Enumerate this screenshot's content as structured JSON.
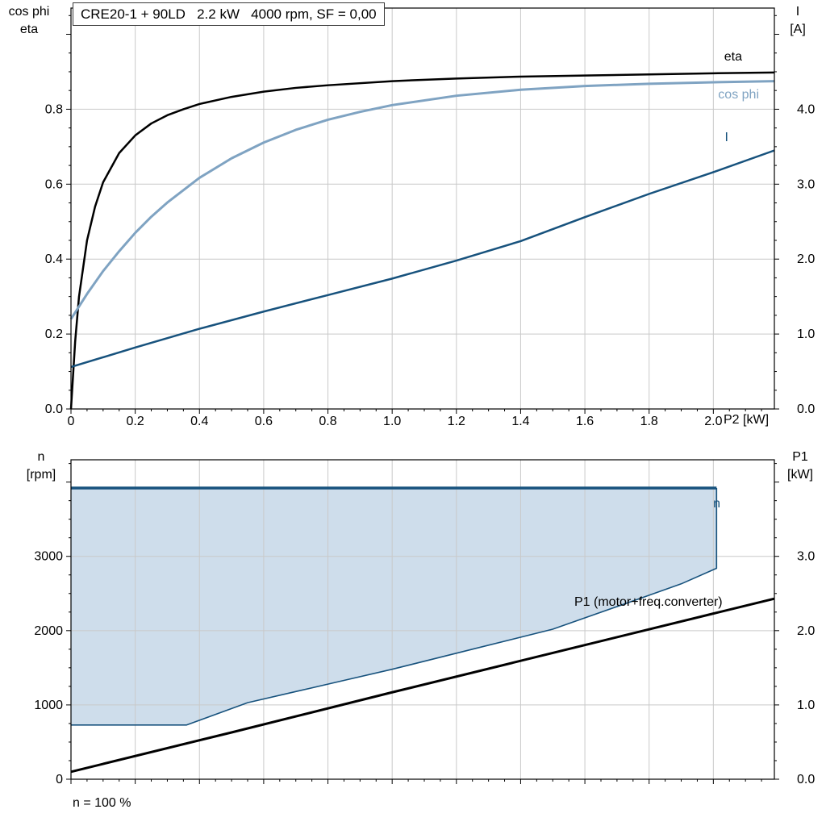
{
  "title_box": {
    "text": "CRE20-1 + 90LD   2.2 kW   4000 rpm, SF = 0,00"
  },
  "top_chart": {
    "left_axis_title": [
      "cos phi",
      "eta"
    ],
    "right_axis_title": [
      "I",
      "[A]"
    ],
    "x_axis_title": "P2 [kW]",
    "curve_labels": {
      "eta": "eta",
      "cos_phi": "cos phi",
      "current": "I"
    }
  },
  "bottom_chart": {
    "left_axis_title": [
      "n",
      "[rpm]"
    ],
    "right_axis_title": [
      "P1",
      "[kW]"
    ],
    "curve_labels": {
      "n": "n",
      "p1": "P1 (motor+freq.converter)"
    },
    "footnote": "n = 100 %"
  },
  "colors": {
    "dark_blue": "#17527D",
    "light_blue": "#7FA3C2",
    "area_fill": "#CEDDEB",
    "grid": "#C9C9C9",
    "black": "#000000"
  },
  "chart_data": [
    {
      "name": "top-performance-chart",
      "type": "line",
      "title": "CRE20-1 + 90LD  2.2 kW  4000 rpm, SF = 0,00",
      "xlabel": "P2 [kW]",
      "ylabel_left": "cos phi / eta",
      "ylabel_right": "I [A]",
      "xlim": [
        0,
        2.19
      ],
      "ylim_left": [
        0,
        1.07
      ],
      "ylim_right": [
        0,
        5.35
      ],
      "x_tick_values": [
        0,
        0.2,
        0.4,
        0.6,
        0.8,
        1.0,
        1.2,
        1.4,
        1.6,
        1.8,
        2.0
      ],
      "x_tick_labels": [
        "0",
        "0.2",
        "0.4",
        "0.6",
        "0.8",
        "1.0",
        "1.2",
        "1.4",
        "1.6",
        "1.8",
        "2.0"
      ],
      "left_tick_values": [
        0,
        0.2,
        0.4,
        0.6,
        0.8
      ],
      "left_tick_labels": [
        "0.0",
        "0.2",
        "0.4",
        "0.6",
        "0.8"
      ],
      "right_tick_values": [
        0,
        1,
        2,
        3,
        4
      ],
      "right_tick_labels": [
        "0.0",
        "1.0",
        "2.0",
        "3.0",
        "4.0"
      ],
      "x_minor_step": 0.05,
      "left_minor_step": 0.05,
      "right_minor_step": 0.25,
      "grid": true,
      "legend_position": "inline-right",
      "series": [
        {
          "name": "eta",
          "axis": "left",
          "color": "#000000",
          "width": 2.5,
          "points": [
            [
              0,
              0
            ],
            [
              0.013,
              0.18
            ],
            [
              0.025,
              0.3
            ],
            [
              0.05,
              0.45
            ],
            [
              0.075,
              0.54
            ],
            [
              0.1,
              0.605
            ],
            [
              0.15,
              0.683
            ],
            [
              0.2,
              0.73
            ],
            [
              0.25,
              0.762
            ],
            [
              0.3,
              0.784
            ],
            [
              0.35,
              0.8
            ],
            [
              0.4,
              0.814
            ],
            [
              0.5,
              0.833
            ],
            [
              0.6,
              0.847
            ],
            [
              0.7,
              0.857
            ],
            [
              0.8,
              0.864
            ],
            [
              1.0,
              0.875
            ],
            [
              1.2,
              0.882
            ],
            [
              1.4,
              0.887
            ],
            [
              1.6,
              0.89
            ],
            [
              1.8,
              0.893
            ],
            [
              2.0,
              0.896
            ],
            [
              2.19,
              0.898
            ]
          ]
        },
        {
          "name": "cos phi",
          "axis": "left",
          "color": "#7FA3C2",
          "width": 3,
          "points": [
            [
              0,
              0.24
            ],
            [
              0.05,
              0.307
            ],
            [
              0.1,
              0.368
            ],
            [
              0.15,
              0.421
            ],
            [
              0.2,
              0.47
            ],
            [
              0.25,
              0.513
            ],
            [
              0.3,
              0.551
            ],
            [
              0.4,
              0.617
            ],
            [
              0.5,
              0.669
            ],
            [
              0.6,
              0.711
            ],
            [
              0.7,
              0.745
            ],
            [
              0.8,
              0.772
            ],
            [
              0.9,
              0.793
            ],
            [
              1.0,
              0.811
            ],
            [
              1.2,
              0.836
            ],
            [
              1.4,
              0.852
            ],
            [
              1.6,
              0.862
            ],
            [
              1.8,
              0.868
            ],
            [
              2.0,
              0.872
            ],
            [
              2.19,
              0.875
            ]
          ]
        },
        {
          "name": "I",
          "axis": "right",
          "color": "#17527D",
          "width": 2.5,
          "points": [
            [
              0,
              0.56
            ],
            [
              0.2,
              0.82
            ],
            [
              0.4,
              1.07
            ],
            [
              0.6,
              1.3
            ],
            [
              0.8,
              1.52
            ],
            [
              1.0,
              1.74
            ],
            [
              1.2,
              1.98
            ],
            [
              1.4,
              2.24
            ],
            [
              1.6,
              2.56
            ],
            [
              1.8,
              2.87
            ],
            [
              2.0,
              3.16
            ],
            [
              2.19,
              3.45
            ]
          ]
        }
      ]
    },
    {
      "name": "bottom-speed-power-chart",
      "type": "line-area",
      "xlabel": "",
      "ylabel_left": "n [rpm]",
      "ylabel_right": "P1 [kW]",
      "xlim": [
        0,
        2.19
      ],
      "ylim_left": [
        0,
        4300
      ],
      "ylim_right": [
        0,
        4.3
      ],
      "x_tick_values": [
        0,
        0.2,
        0.4,
        0.6,
        0.8,
        1.0,
        1.2,
        1.4,
        1.6,
        1.8,
        2.0
      ],
      "x_tick_labels": [],
      "left_tick_values": [
        0,
        1000,
        2000,
        3000
      ],
      "left_tick_labels": [
        "0",
        "1000",
        "2000",
        "3000"
      ],
      "right_tick_values": [
        0,
        1,
        2,
        3
      ],
      "right_tick_labels": [
        "0.0",
        "1.0",
        "2.0",
        "3.0"
      ],
      "x_minor_step": 0.05,
      "left_minor_step": 250,
      "right_minor_step": 0.25,
      "annotation": "n = 100 %",
      "area": {
        "top_series": "n",
        "bottom_series": "n min",
        "fill": "#CEDDEB"
      },
      "series": [
        {
          "name": "n",
          "axis": "left",
          "color": "#17527D",
          "width": 3.5,
          "points": [
            [
              0,
              3920
            ],
            [
              2.01,
              3920
            ]
          ]
        },
        {
          "name": "n min",
          "axis": "left",
          "color": "#17527D",
          "width": 1.6,
          "right_edge_to": "n",
          "points": [
            [
              0,
              730
            ],
            [
              0.36,
              730
            ],
            [
              0.55,
              1030
            ],
            [
              0.7,
              1180
            ],
            [
              0.85,
              1330
            ],
            [
              1.0,
              1480
            ],
            [
              1.25,
              1750
            ],
            [
              1.5,
              2020
            ],
            [
              1.75,
              2400
            ],
            [
              1.9,
              2630
            ],
            [
              2.01,
              2840
            ]
          ]
        },
        {
          "name": "P1 (motor+freq.converter)",
          "axis": "right",
          "color": "#000000",
          "width": 3,
          "points": [
            [
              0,
              0.1
            ],
            [
              0.5,
              0.63
            ],
            [
              1.0,
              1.17
            ],
            [
              1.5,
              1.7
            ],
            [
              2.0,
              2.23
            ],
            [
              2.19,
              2.43
            ]
          ]
        }
      ]
    }
  ]
}
